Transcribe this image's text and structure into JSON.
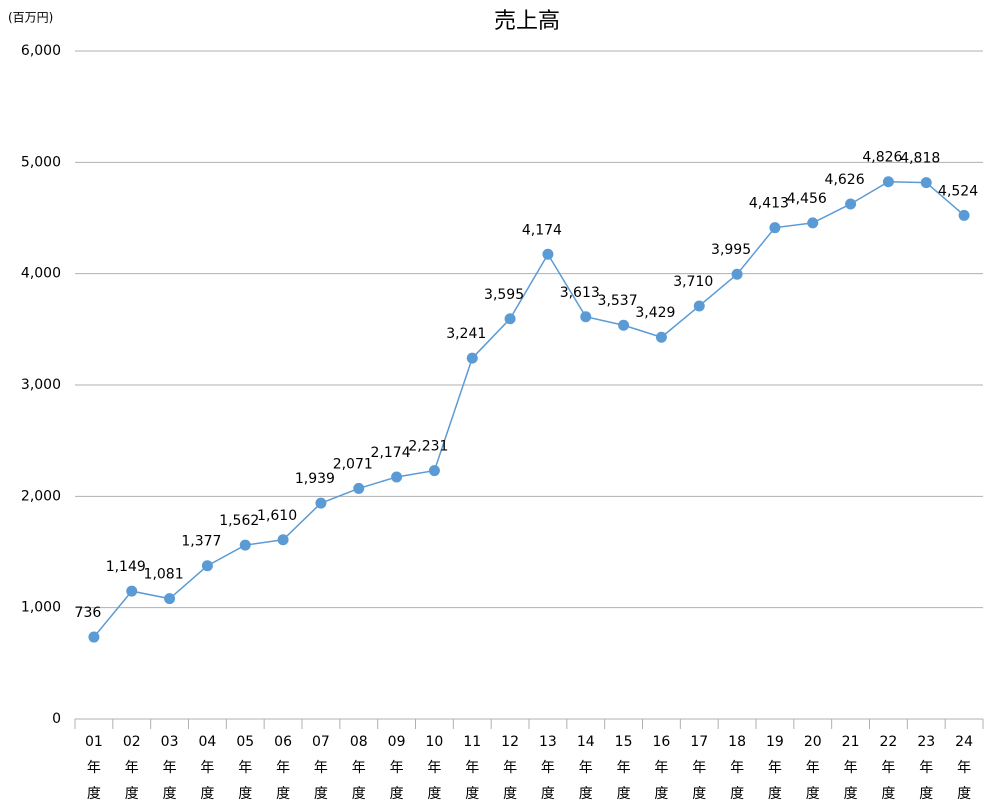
{
  "chart_data": {
    "type": "line",
    "title": "売上高",
    "unit_label": "(百万円)",
    "categories": [
      "01年度",
      "02年度",
      "03年度",
      "04年度",
      "05年度",
      "06年度",
      "07年度",
      "08年度",
      "09年度",
      "10年度",
      "11年度",
      "12年度",
      "13年度",
      "14年度",
      "15年度",
      "16年度",
      "17年度",
      "18年度",
      "19年度",
      "20年度",
      "21年度",
      "22年度",
      "23年度",
      "24年度"
    ],
    "series": [
      {
        "name": "売上高",
        "color": "#5b9bd5",
        "values": [
          736,
          1149,
          1081,
          1377,
          1562,
          1610,
          1939,
          2071,
          2174,
          2231,
          3241,
          3595,
          4174,
          3613,
          3537,
          3429,
          3710,
          3995,
          4413,
          4456,
          4626,
          4826,
          4818,
          4524
        ],
        "value_labels": [
          "736",
          "1,149",
          "1,081",
          "1,377",
          "1,562",
          "1,610",
          "1,939",
          "2,071",
          "2,174",
          "2,231",
          "3,241",
          "3,595",
          "4,174",
          "3,613",
          "3,537",
          "3,429",
          "3,710",
          "3,995",
          "4,413",
          "4,456",
          "4,626",
          "4,826",
          "4,818",
          "4,524"
        ]
      }
    ],
    "ylim": [
      0,
      6000
    ],
    "yticks": [
      {
        "value": 0,
        "label": "0"
      },
      {
        "value": 1000,
        "label": "1,000"
      },
      {
        "value": 2000,
        "label": "2,000"
      },
      {
        "value": 3000,
        "label": "3,000"
      },
      {
        "value": 4000,
        "label": "4,000"
      },
      {
        "value": 5000,
        "label": "5,000"
      },
      {
        "value": 6000,
        "label": "6,000"
      }
    ],
    "grid": true
  }
}
